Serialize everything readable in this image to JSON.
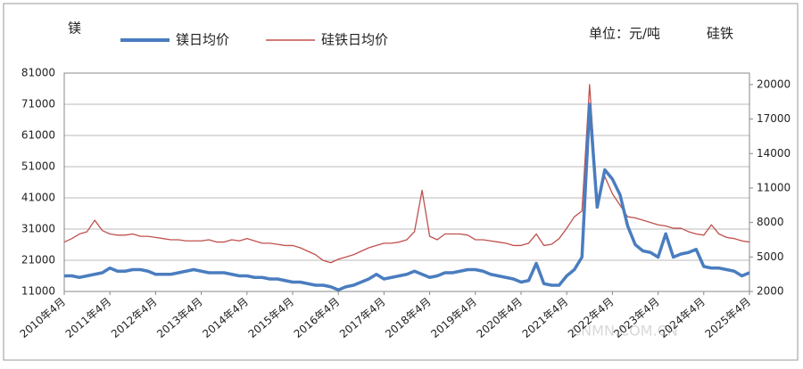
{
  "chart_data": {
    "type": "line",
    "ylabel": "镁",
    "y2label": "硅铁",
    "unit": "单位：元/吨",
    "watermark": "CNMN.COM.CN",
    "categories": [
      "2010年4月",
      null,
      null,
      null,
      null,
      null,
      "2011年4月",
      null,
      null,
      null,
      null,
      null,
      "2012年4月",
      null,
      null,
      null,
      null,
      null,
      "2013年4月",
      null,
      null,
      null,
      null,
      null,
      "2014年4月",
      null,
      null,
      null,
      null,
      null,
      "2015年4月",
      null,
      null,
      null,
      null,
      null,
      "2016年4月",
      null,
      null,
      null,
      null,
      null,
      "2017年4月",
      null,
      null,
      null,
      null,
      null,
      "2018年4月",
      null,
      null,
      null,
      null,
      null,
      "2019年4月",
      null,
      null,
      null,
      null,
      null,
      "2020年4月",
      null,
      null,
      null,
      null,
      null,
      "2021年4月",
      null,
      null,
      null,
      null,
      null,
      "2022年4月",
      null,
      null,
      null,
      null,
      null,
      "2023年4月",
      null,
      null,
      null,
      null,
      null,
      "2024年4月",
      null,
      null,
      null,
      null,
      null,
      "2025年4月"
    ],
    "series": [
      {
        "name": "镁日均价",
        "color": "#4a7dbf",
        "axis": "y",
        "values": [
          16000,
          16000,
          15500,
          16000,
          16500,
          17000,
          18500,
          17500,
          17500,
          18000,
          18000,
          17500,
          16500,
          16500,
          16500,
          17000,
          17500,
          18000,
          17500,
          17000,
          17000,
          17000,
          16500,
          16000,
          16000,
          15500,
          15500,
          15000,
          15000,
          14500,
          14000,
          14000,
          13500,
          13000,
          13000,
          12500,
          11500,
          12500,
          13000,
          14000,
          15000,
          16500,
          15000,
          15500,
          16000,
          16500,
          17500,
          16500,
          15500,
          16000,
          17000,
          17000,
          17500,
          18000,
          18000,
          17500,
          16500,
          16000,
          15500,
          15000,
          14000,
          14500,
          20000,
          13500,
          13000,
          13000,
          16000,
          18000,
          22000,
          71000,
          38000,
          50000,
          47000,
          42000,
          32000,
          26000,
          24000,
          23500,
          22000,
          29500,
          22000,
          23000,
          23500,
          24500,
          19000,
          18500,
          18500,
          18000,
          17500,
          16000,
          17000
        ]
      },
      {
        "name": "硅铁日均价",
        "color": "#c0504d",
        "axis": "y2",
        "values": [
          6300,
          6600,
          7000,
          7200,
          8200,
          7300,
          7000,
          6900,
          6900,
          7000,
          6800,
          6800,
          6700,
          6600,
          6500,
          6500,
          6400,
          6400,
          6400,
          6500,
          6300,
          6300,
          6500,
          6400,
          6600,
          6400,
          6200,
          6200,
          6100,
          6000,
          6000,
          5800,
          5500,
          5200,
          4700,
          4500,
          4800,
          5000,
          5200,
          5500,
          5800,
          6000,
          6200,
          6200,
          6300,
          6500,
          7200,
          10800,
          6800,
          6500,
          7000,
          7000,
          7000,
          6900,
          6500,
          6500,
          6400,
          6300,
          6200,
          6000,
          6000,
          6200,
          7000,
          6000,
          6100,
          6600,
          7500,
          8500,
          9000,
          20000,
          10000,
          12000,
          10500,
          9500,
          8500,
          8400,
          8200,
          8000,
          7800,
          7700,
          7500,
          7500,
          7200,
          7000,
          6900,
          7800,
          7000,
          6700,
          6600,
          6400,
          6300
        ]
      }
    ],
    "ylim": [
      11000,
      81000
    ],
    "yticks": [
      11000,
      21000,
      31000,
      41000,
      51000,
      61000,
      71000,
      81000
    ],
    "y2lim": [
      2000,
      21000
    ],
    "y2ticks": [
      2000,
      5000,
      8000,
      11000,
      14000,
      17000,
      20000
    ],
    "grid": true
  }
}
